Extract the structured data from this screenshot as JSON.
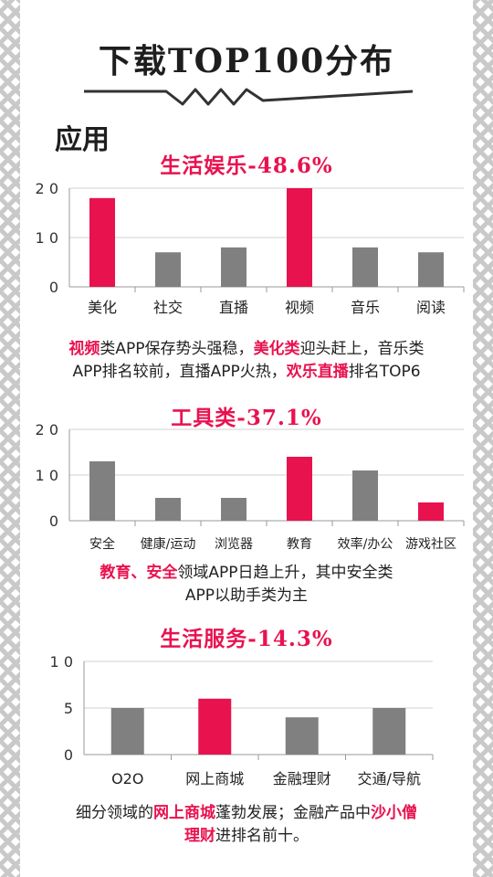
{
  "header": {
    "title": "下载TOP100分布",
    "section": "应用"
  },
  "colors": {
    "highlight": "#e8124f",
    "normal": "#808080"
  },
  "chart_data": [
    {
      "type": "bar",
      "title": "生活娱乐-48.6%",
      "categories": [
        "美化",
        "社交",
        "直播",
        "视频",
        "音乐",
        "阅读"
      ],
      "values": [
        18,
        7,
        8,
        20,
        8,
        7
      ],
      "highlight": [
        true,
        false,
        false,
        true,
        false,
        false
      ],
      "ylim": [
        0,
        20
      ],
      "yticks": [
        0,
        10,
        20
      ],
      "ytick_labels": [
        "0",
        "1 0",
        "2 0"
      ],
      "grid": true,
      "legend": "none"
    },
    {
      "type": "bar",
      "title": "工具类-37.1%",
      "categories": [
        "安全",
        "健康/运动",
        "浏览器",
        "教育",
        "效率/办公",
        "游戏社区"
      ],
      "values": [
        13,
        5,
        5,
        14,
        11,
        4
      ],
      "highlight": [
        false,
        false,
        false,
        true,
        false,
        true
      ],
      "ylim": [
        0,
        20
      ],
      "yticks": [
        0,
        10,
        20
      ],
      "ytick_labels": [
        "0",
        "1 0",
        "2 0"
      ],
      "grid": true,
      "legend": "none"
    },
    {
      "type": "bar",
      "title": "生活服务-14.3%",
      "categories": [
        "O2O",
        "网上商城",
        "金融理财",
        "交通/导航"
      ],
      "values": [
        5,
        6,
        4,
        5
      ],
      "highlight": [
        false,
        true,
        false,
        false
      ],
      "ylim": [
        0,
        10
      ],
      "yticks": [
        0,
        5,
        10
      ],
      "ytick_labels": [
        "0",
        "5",
        "1 0"
      ],
      "grid": true,
      "legend": "none"
    }
  ],
  "captions": {
    "c1": {
      "p1": "视频",
      "p2": "类APP保存势头强稳，",
      "p3": "美化类",
      "p4": "迎头赶上，音乐类",
      "p5": "APP排名较前，直播APP火热，",
      "p6": "欢乐直播",
      "p7": "排名TOP6"
    },
    "c2": {
      "p1": "教育、安全",
      "p2": "领域APP日趋上升，其中安全类",
      "p3": "APP以助手类为主"
    },
    "c3": {
      "p1": "细分领域的",
      "p2": "网上商城",
      "p3": "蓬勃发展；金融产品中",
      "p4": "沙小僧",
      "p5": "理财",
      "p6": "进排名前十。"
    }
  }
}
